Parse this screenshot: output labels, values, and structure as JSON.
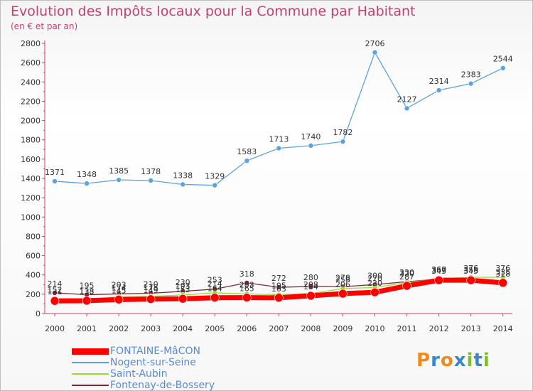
{
  "header": {
    "title": "Evolution des Impôts locaux pour la Commune par Habitant",
    "subtitle": "(en € et par an)"
  },
  "brand": {
    "letters": [
      "P",
      "r",
      "o",
      "x",
      "i",
      "t",
      "i"
    ],
    "colors": [
      "#f08a1c",
      "#3b86c9",
      "#f08a1c",
      "#3b86c9",
      "#7cbf2b",
      "#3b86c9",
      "#7cbf2b"
    ]
  },
  "colors": {
    "title": "#c6406f",
    "axis": "#c6406f",
    "legend_text": "#5b8ad1"
  },
  "chart_data": {
    "type": "line",
    "title": "Evolution des Impôts locaux pour la Commune par Habitant",
    "subtitle": "(en € et par an)",
    "x": [
      "2000",
      "2001",
      "2002",
      "2003",
      "2004",
      "2005",
      "2006",
      "2007",
      "2008",
      "2009",
      "2010",
      "2011",
      "2012",
      "2013",
      "2014"
    ],
    "y_ticks": [
      "0",
      "200",
      "400",
      "600",
      "800",
      "1000",
      "1200",
      "1400",
      "1600",
      "1800",
      "2000",
      "2200",
      "2400",
      "2600",
      "2800"
    ],
    "ylim": [
      0,
      2800
    ],
    "grid": false,
    "legend_position": "bottom-left",
    "series": [
      {
        "name": "FONTAINE-MâCON",
        "color": "#ff0000",
        "values": [
          131,
          133,
          145,
          149,
          153,
          164,
          165,
          163,
          184,
          206,
          220,
          287,
          345,
          345,
          318
        ],
        "point_labels": [
          "131",
          "133",
          "145",
          "149",
          "153",
          "164",
          "165",
          "163",
          "184",
          "206",
          "220",
          "287",
          "345",
          "345",
          "318"
        ]
      },
      {
        "name": "Nogent-sur-Seine",
        "color": "#5ca3dd",
        "values": [
          1371,
          1348,
          1385,
          1378,
          1338,
          1329,
          1583,
          1713,
          1740,
          1782,
          2706,
          2127,
          2314,
          2383,
          2544
        ],
        "point_labels": [
          "1371",
          "1348",
          "1385",
          "1378",
          "1338",
          "1329",
          "1583",
          "1713",
          "1740",
          "1782",
          "2706",
          "2127",
          "2314",
          "2383",
          "2544"
        ]
      },
      {
        "name": "Saint-Aubin",
        "color": "#99dd33",
        "values": [
          152,
          138,
          174,
          178,
          193,
          214,
          203,
          195,
          208,
          258,
          270,
          320,
          360,
          376,
          376
        ],
        "point_labels": [
          "152",
          "138",
          "174",
          "178",
          "193",
          "214",
          "203",
          "195",
          "208",
          "258",
          "270",
          "320",
          "360",
          "376",
          "376"
        ]
      },
      {
        "name": "Fontenay-de-Bossery",
        "color": "#7a2a3a",
        "values": [
          214,
          195,
          203,
          210,
          230,
          253,
          318,
          272,
          280,
          278,
          300,
          330,
          357,
          358,
          335
        ],
        "point_labels": [
          "214",
          "195",
          "203",
          "210",
          "230",
          "253",
          "318",
          "272",
          "280",
          "278",
          "300",
          "330",
          "357",
          "358",
          "335"
        ]
      }
    ]
  }
}
